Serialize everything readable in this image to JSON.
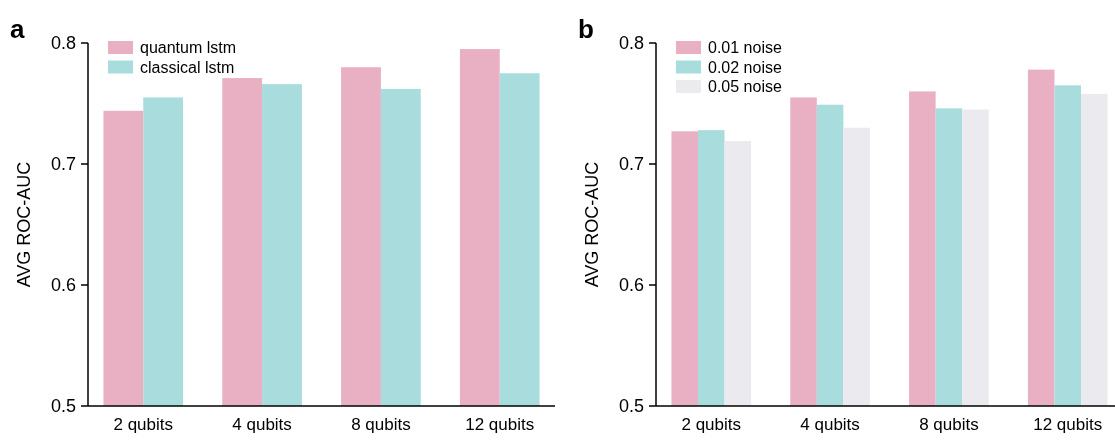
{
  "chart_data": [
    {
      "type": "bar",
      "title": "a",
      "ylabel": "AVG ROC-AUC",
      "categories": [
        "2 qubits",
        "4 qubits",
        "8 qubits",
        "12 qubits"
      ],
      "series": [
        {
          "name": "quantum lstm",
          "color": "#e9b0c4",
          "values": [
            0.744,
            0.771,
            0.78,
            0.795
          ]
        },
        {
          "name": "classical lstm",
          "color": "#a9dcdd",
          "values": [
            0.755,
            0.766,
            0.762,
            0.775
          ]
        }
      ],
      "ylim": [
        0.5,
        0.8
      ],
      "yticks": [
        0.5,
        0.6,
        0.7,
        0.8
      ],
      "grid": false,
      "legend": "top left"
    },
    {
      "type": "bar",
      "title": "b",
      "ylabel": "AVG ROC-AUC",
      "categories": [
        "2 qubits",
        "4 qubits",
        "8 qubits",
        "12 qubits"
      ],
      "series": [
        {
          "name": "0.01 noise",
          "color": "#e9b0c4",
          "values": [
            0.727,
            0.755,
            0.76,
            0.778
          ]
        },
        {
          "name": "0.02 noise",
          "color": "#a9dcdd",
          "values": [
            0.728,
            0.749,
            0.746,
            0.765
          ]
        },
        {
          "name": "0.05 noise",
          "color": "#ebeaee",
          "values": [
            0.719,
            0.73,
            0.745,
            0.758
          ]
        }
      ],
      "ylim": [
        0.5,
        0.8
      ],
      "yticks": [
        0.5,
        0.6,
        0.7,
        0.8
      ],
      "grid": false,
      "legend": "top left"
    }
  ]
}
